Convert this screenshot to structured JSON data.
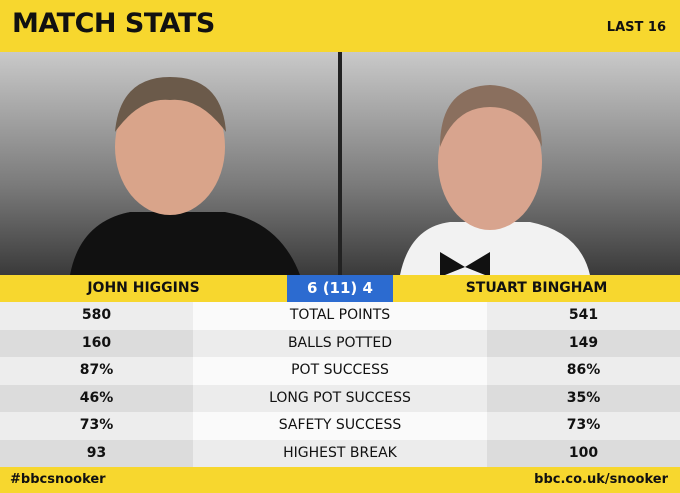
{
  "header": {
    "title": "MATCH STATS",
    "round": "LAST 16"
  },
  "players": [
    {
      "name": "JOHN HIGGINS"
    },
    {
      "name": "STUART BINGHAM"
    }
  ],
  "score": "6 (11) 4",
  "stats": [
    {
      "left": "580",
      "label": "TOTAL POINTS",
      "right": "541"
    },
    {
      "left": "160",
      "label": "BALLS POTTED",
      "right": "149"
    },
    {
      "left": "87%",
      "label": "POT SUCCESS",
      "right": "86%"
    },
    {
      "left": "46%",
      "label": "LONG POT SUCCESS",
      "right": "35%"
    },
    {
      "left": "73%",
      "label": "SAFETY SUCCESS",
      "right": "73%"
    },
    {
      "left": "93",
      "label": "HIGHEST BREAK",
      "right": "100"
    }
  ],
  "footer": {
    "hashtag": "#bbcsnooker",
    "url": "bbc.co.uk/snooker"
  }
}
